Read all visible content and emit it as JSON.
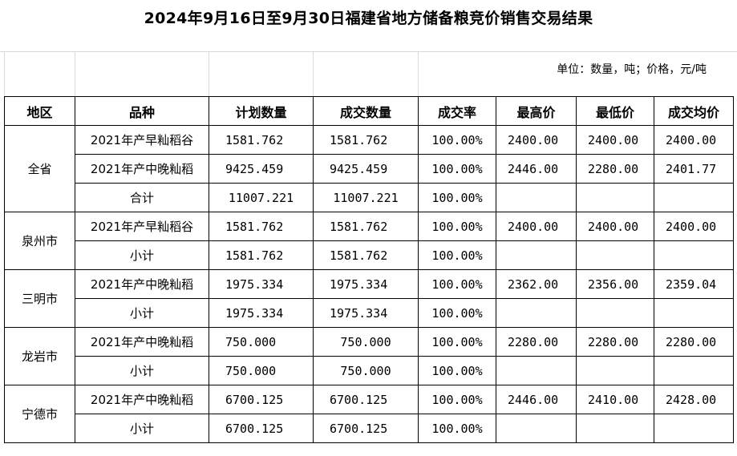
{
  "title": "2024年9月16日至9月30日福建省地方储备粮竞价销售交易结果",
  "unit_note": "单位：数量，吨；价格，元/吨",
  "headers": [
    "地区",
    "品种",
    "计划数量",
    "成交数量",
    "成交率",
    "最高价",
    "最低价",
    "成交均价"
  ],
  "groups": [
    {
      "region": "全省",
      "rows": [
        {
          "variety": "2021年产早籼稻谷",
          "plan": "1581.762",
          "deal": "1581.762",
          "rate": "100.00%",
          "max": "2400.00",
          "min": "2400.00",
          "avg": "2400.00"
        },
        {
          "variety": "2021年产中晚籼稻",
          "plan": "9425.459",
          "deal": "9425.459",
          "rate": "100.00%",
          "max": "2446.00",
          "min": "2280.00",
          "avg": "2401.77"
        },
        {
          "variety": "合计",
          "plan": "11007.221",
          "deal": "11007.221",
          "rate": "100.00%",
          "max": "",
          "min": "",
          "avg": ""
        }
      ]
    },
    {
      "region": "泉州市",
      "rows": [
        {
          "variety": "2021年产早籼稻谷",
          "plan": "1581.762",
          "deal": "1581.762",
          "rate": "100.00%",
          "max": "2400.00",
          "min": "2400.00",
          "avg": "2400.00"
        },
        {
          "variety": "小计",
          "plan": "1581.762",
          "deal": "1581.762",
          "rate": "100.00%",
          "max": "",
          "min": "",
          "avg": ""
        }
      ]
    },
    {
      "region": "三明市",
      "rows": [
        {
          "variety": "2021年产中晚籼稻",
          "plan": "1975.334",
          "deal": "1975.334",
          "rate": "100.00%",
          "max": "2362.00",
          "min": "2356.00",
          "avg": "2359.04"
        },
        {
          "variety": "小计",
          "plan": "1975.334",
          "deal": "1975.334",
          "rate": "100.00%",
          "max": "",
          "min": "",
          "avg": ""
        }
      ]
    },
    {
      "region": "龙岩市",
      "rows": [
        {
          "variety": "2021年产中晚籼稻",
          "plan": "750.000",
          "deal": "750.000",
          "rate": "100.00%",
          "max": "2280.00",
          "min": "2280.00",
          "avg": "2280.00"
        },
        {
          "variety": "小计",
          "plan": "750.000",
          "deal": "750.000",
          "rate": "100.00%",
          "max": "",
          "min": "",
          "avg": ""
        }
      ]
    },
    {
      "region": "宁德市",
      "rows": [
        {
          "variety": "2021年产中晚籼稻",
          "plan": "6700.125",
          "deal": "6700.125",
          "rate": "100.00%",
          "max": "2446.00",
          "min": "2410.00",
          "avg": "2428.00"
        },
        {
          "variety": "小计",
          "plan": "6700.125",
          "deal": "6700.125",
          "rate": "100.00%",
          "max": "",
          "min": "",
          "avg": ""
        }
      ]
    }
  ]
}
